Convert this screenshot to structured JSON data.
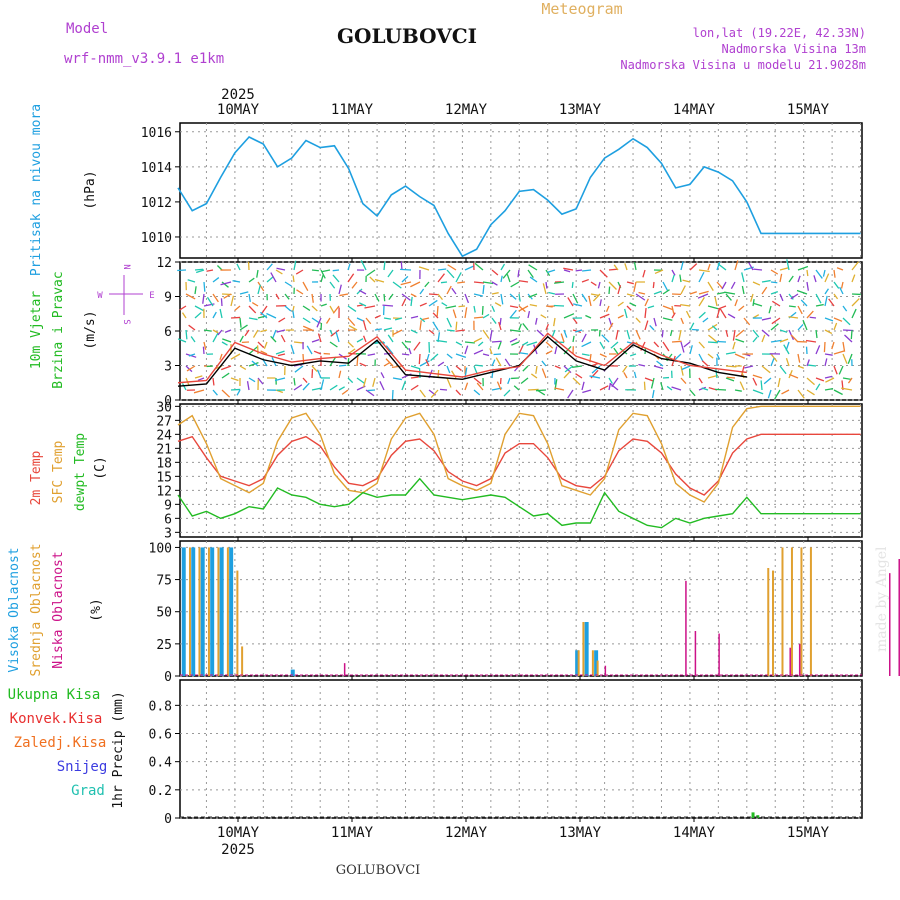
{
  "header": {
    "model_label": "Model",
    "model_name": "wrf-nmm_v3.9.1 e1km",
    "title": "GOLUBOVCI",
    "meteogram_label": "Meteogram",
    "lonlat": "lon,lat (19.22E, 42.33N)",
    "elevation": "Nadmorska Visina 13m",
    "model_elevation": "Nadmorska Visina u modelu 21.9028m",
    "year_top": "2025",
    "year_bottom": "2025",
    "footer_title": "GOLUBOVCI",
    "watermark": "made by Angel"
  },
  "colors": {
    "pressure": "#1e9fe0",
    "temp2m": "#e8473c",
    "sfc": "#e0a030",
    "dewpt": "#22bb22",
    "high_cloud": "#1e9fe0",
    "mid_cloud": "#e0a030",
    "low_cloud": "#cc1188",
    "precip_total": "#22bb22",
    "precip_conv": "#e83030",
    "precip_frozen": "#f07020",
    "snow": "#3c3ce0",
    "graupel": "#20c0b0",
    "wind_speed": "#000000",
    "gust": "#e8473c",
    "label_purple": "#b040d0"
  },
  "days": [
    "10MAY",
    "11MAY",
    "12MAY",
    "13MAY",
    "14MAY",
    "15MAY"
  ],
  "chart_data": [
    {
      "type": "line",
      "name": "pressure",
      "ylabel_left": "Pritisak na nivou mora",
      "ylabel_unit": "(hPa)",
      "ylim": [
        1008.8,
        1016.5
      ],
      "yticks": [
        1010,
        1012,
        1014,
        1016
      ],
      "x_hours": [
        0,
        3,
        6,
        9,
        12,
        15,
        18,
        21,
        24,
        27,
        30,
        33,
        36,
        39,
        42,
        45,
        48,
        51,
        54,
        57,
        60,
        63,
        66,
        69,
        72,
        75,
        78,
        81,
        84,
        87,
        90,
        93,
        96,
        99,
        102,
        105,
        108,
        111,
        114,
        117,
        120,
        123,
        126,
        129,
        132,
        135,
        138,
        141,
        144
      ],
      "values": [
        1012.8,
        1011.5,
        1011.9,
        1013.4,
        1014.8,
        1015.7,
        1015.3,
        1014.0,
        1014.5,
        1015.5,
        1015.1,
        1015.2,
        1013.9,
        1011.9,
        1011.2,
        1012.4,
        1012.9,
        1012.3,
        1011.8,
        1010.2,
        1008.9,
        1009.3,
        1010.7,
        1011.5,
        1012.6,
        1012.7,
        1012.1,
        1011.3,
        1011.6,
        1013.4,
        1014.5,
        1015.0,
        1015.6,
        1015.1,
        1014.2,
        1012.8,
        1013.0,
        1014.0,
        1013.7,
        1013.2,
        1012.0,
        1010.2,
        1010.2,
        1010.2,
        1010.2,
        1010.2,
        1010.2,
        1010.2,
        1010.2
      ],
      "grid": true
    },
    {
      "type": "line",
      "name": "wind",
      "ylabel_left": [
        "10m Vjetar",
        "Brzina i Pravac"
      ],
      "ylabel_unit": "(m/s)",
      "compass": [
        "W",
        "E",
        "N",
        "S"
      ],
      "ylim": [
        0,
        12
      ],
      "yticks": [
        0,
        3,
        6,
        9,
        12
      ],
      "x_hours": [
        0,
        6,
        12,
        18,
        24,
        30,
        36,
        42,
        48,
        54,
        60,
        66,
        72,
        78,
        84,
        90,
        96,
        102,
        108,
        114,
        120
      ],
      "series": [
        {
          "values": [
            1.2,
            1.4,
            4.5,
            3.5,
            3.0,
            3.4,
            3.2,
            5.2,
            2.2,
            2.0,
            1.8,
            2.4,
            3.0,
            5.5,
            3.4,
            2.6,
            4.8,
            3.6,
            3.2,
            2.4,
            2.0
          ]
        },
        {
          "values": [
            1.5,
            1.7,
            5.0,
            4.0,
            3.3,
            3.6,
            3.8,
            5.5,
            2.6,
            2.3,
            2.0,
            2.6,
            2.9,
            5.8,
            3.8,
            3.0,
            5.0,
            3.9,
            3.0,
            2.7,
            2.4
          ]
        }
      ],
      "grid": true
    },
    {
      "type": "line",
      "name": "temperature",
      "ylabel_left": [
        "2m Temp",
        "SFC Temp",
        "dewpt Temp"
      ],
      "ylabel_unit": "(C)",
      "ylim": [
        2,
        30.5
      ],
      "yticks": [
        3,
        6,
        9,
        12,
        15,
        18,
        21,
        24,
        27,
        30
      ],
      "x_hours": [
        0,
        3,
        6,
        9,
        12,
        15,
        18,
        21,
        24,
        27,
        30,
        33,
        36,
        39,
        42,
        45,
        48,
        51,
        54,
        57,
        60,
        63,
        66,
        69,
        72,
        75,
        78,
        81,
        84,
        87,
        90,
        93,
        96,
        99,
        102,
        105,
        108,
        111,
        114,
        117,
        120,
        123,
        126,
        129,
        132,
        135,
        138,
        141,
        144
      ],
      "series": [
        {
          "values": [
            22.5,
            23.5,
            19.0,
            15.0,
            14.0,
            13.0,
            14.5,
            19.5,
            22.5,
            23.5,
            21.5,
            17.0,
            13.5,
            13.0,
            14.5,
            19.5,
            22.5,
            23.0,
            20.5,
            16.0,
            14.0,
            13.0,
            14.5,
            20.0,
            22.0,
            22.0,
            19.0,
            14.5,
            13.0,
            12.5,
            15.0,
            20.5,
            23.0,
            22.5,
            20.0,
            15.5,
            12.5,
            11.0,
            14.0,
            20.0,
            23.0,
            24.0,
            24.0,
            24.0,
            24.0,
            24.0,
            24.0,
            24.0,
            24.0
          ]
        },
        {
          "values": [
            26.0,
            28.0,
            22.0,
            14.5,
            13.0,
            11.5,
            13.5,
            22.5,
            27.5,
            28.5,
            24.0,
            15.5,
            12.0,
            11.5,
            13.5,
            23.0,
            27.5,
            28.5,
            24.0,
            14.5,
            13.0,
            12.0,
            13.5,
            24.0,
            28.5,
            28.0,
            22.0,
            13.0,
            12.0,
            11.0,
            14.5,
            25.0,
            28.5,
            28.0,
            22.0,
            13.5,
            11.0,
            9.5,
            13.5,
            25.5,
            29.5,
            30.0,
            30.0,
            30.0,
            30.0,
            30.0,
            30.0,
            30.0,
            30.0
          ]
        },
        {
          "values": [
            11.0,
            6.5,
            7.5,
            6.0,
            7.0,
            8.5,
            8.0,
            12.5,
            11.0,
            10.5,
            9.0,
            8.5,
            9.0,
            11.5,
            10.5,
            11.0,
            11.0,
            14.5,
            11.0,
            10.5,
            10.0,
            10.5,
            11.0,
            10.5,
            8.5,
            6.5,
            7.0,
            4.5,
            5.0,
            5.0,
            11.5,
            7.5,
            6.0,
            4.5,
            4.0,
            6.0,
            5.0,
            6.0,
            6.5,
            7.0,
            10.5,
            7.0,
            7.0,
            7.0,
            7.0,
            7.0,
            7.0,
            7.0,
            7.0
          ]
        }
      ],
      "grid": true
    },
    {
      "type": "bar",
      "name": "cloud",
      "ylabel_left": [
        "Visoka Oblacnost",
        "Srednja Oblacnost",
        "Niska Oblacnost"
      ],
      "ylabel_unit": "(%)",
      "ylim": [
        0,
        105
      ],
      "yticks": [
        0,
        25,
        50,
        75,
        100
      ],
      "series": [
        {
          "name": "high",
          "x_hours": [
            1,
            3,
            5,
            7,
            9,
            11,
            24,
            84,
            86,
            88
          ],
          "values": [
            100,
            100,
            100,
            100,
            100,
            100,
            5,
            20,
            42,
            20
          ]
        },
        {
          "name": "mid",
          "x_hours": [
            2,
            4,
            6,
            8,
            10,
            12,
            13,
            84,
            85,
            87,
            88,
            124,
            125,
            127,
            129,
            131,
            133,
            157
          ],
          "values": [
            100,
            100,
            100,
            100,
            100,
            82,
            23,
            20,
            42,
            20,
            12,
            84,
            82,
            100,
            100,
            100,
            100,
            45
          ]
        },
        {
          "name": "low",
          "x_hours": [
            35,
            90,
            107,
            109,
            114,
            129,
            131,
            150,
            152,
            156
          ],
          "values": [
            10,
            8,
            74,
            35,
            33,
            22,
            25,
            80,
            91,
            36
          ]
        }
      ],
      "grid": true
    },
    {
      "type": "bar",
      "name": "precip",
      "ylabel_left": "1hr Precip (mm)",
      "legend": [
        "Ukupna Kisa",
        "Konvek.Kisa",
        "Zaledj.Kisa",
        "Snijeg",
        "Grad"
      ],
      "ylim": [
        0,
        0.98
      ],
      "yticks": [
        0,
        0.2,
        0.4,
        0.6,
        0.8
      ],
      "series": [
        {
          "name": "Ukupna Kisa",
          "x_hours": [
            121,
            122,
            157
          ],
          "values": [
            0.04,
            0.02,
            0.01
          ]
        }
      ],
      "grid": true
    }
  ]
}
